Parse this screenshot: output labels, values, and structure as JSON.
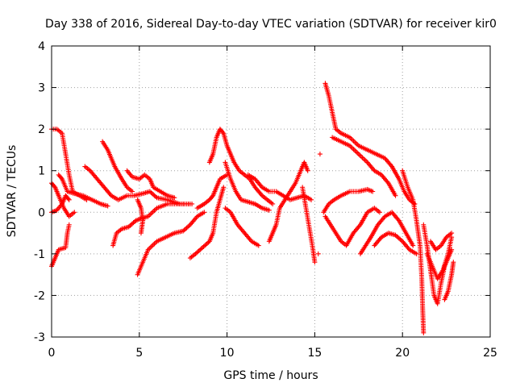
{
  "chart_data": {
    "type": "scatter",
    "title": "Day 338 of 2016, Sidereal Day-to-day VTEC variation (SDTVAR) for receiver kir0",
    "xlabel": "GPS time / hours",
    "ylabel": "SDTVAR / TECUs",
    "xlim": [
      0,
      25
    ],
    "ylim": [
      -3,
      4
    ],
    "x_ticks": [
      0,
      5,
      10,
      15,
      20,
      25
    ],
    "y_ticks": [
      -3,
      -2,
      -1,
      0,
      1,
      2,
      3,
      4
    ],
    "grid": true,
    "marker": "+",
    "color": "#ff0000",
    "series": [
      {
        "name": "trace-01",
        "points": [
          [
            0.0,
            2.0
          ],
          [
            0.3,
            2.0
          ],
          [
            0.6,
            1.9
          ],
          [
            0.8,
            1.4
          ],
          [
            1.0,
            0.9
          ],
          [
            1.2,
            0.5
          ],
          [
            1.6,
            0.4
          ],
          [
            2.0,
            0.3
          ]
        ]
      },
      {
        "name": "trace-02",
        "points": [
          [
            0.0,
            0.7
          ],
          [
            0.2,
            0.6
          ],
          [
            0.4,
            0.4
          ],
          [
            0.7,
            0.1
          ],
          [
            1.0,
            -0.1
          ],
          [
            1.3,
            0.0
          ]
        ]
      },
      {
        "name": "trace-03",
        "points": [
          [
            0.0,
            0.0
          ],
          [
            0.3,
            0.05
          ],
          [
            0.6,
            0.2
          ],
          [
            0.8,
            0.4
          ],
          [
            1.0,
            0.3
          ]
        ]
      },
      {
        "name": "trace-04",
        "points": [
          [
            0.0,
            -1.3
          ],
          [
            0.2,
            -1.1
          ],
          [
            0.4,
            -0.9
          ],
          [
            0.8,
            -0.85
          ],
          [
            0.9,
            -0.5
          ],
          [
            1.0,
            -0.3
          ]
        ]
      },
      {
        "name": "trace-05",
        "points": [
          [
            0.4,
            0.9
          ],
          [
            0.6,
            0.8
          ],
          [
            0.9,
            0.5
          ],
          [
            1.3,
            0.45
          ],
          [
            1.8,
            0.4
          ],
          [
            2.3,
            0.3
          ],
          [
            2.8,
            0.2
          ],
          [
            3.2,
            0.15
          ]
        ]
      },
      {
        "name": "trace-06",
        "points": [
          [
            1.9,
            1.1
          ],
          [
            2.2,
            1.0
          ],
          [
            2.6,
            0.8
          ],
          [
            3.0,
            0.6
          ],
          [
            3.4,
            0.4
          ],
          [
            3.8,
            0.3
          ],
          [
            4.3,
            0.4
          ],
          [
            4.7,
            0.4
          ],
          [
            5.2,
            0.45
          ],
          [
            5.6,
            0.5
          ],
          [
            6.0,
            0.35
          ],
          [
            6.6,
            0.3
          ],
          [
            7.3,
            0.2
          ],
          [
            8.0,
            0.2
          ]
        ]
      },
      {
        "name": "trace-07",
        "points": [
          [
            2.9,
            1.7
          ],
          [
            3.2,
            1.5
          ],
          [
            3.6,
            1.1
          ],
          [
            4.0,
            0.8
          ],
          [
            4.3,
            0.6
          ],
          [
            4.6,
            0.5
          ]
        ]
      },
      {
        "name": "trace-08",
        "points": [
          [
            3.5,
            -0.8
          ],
          [
            3.7,
            -0.5
          ],
          [
            4.0,
            -0.4
          ],
          [
            4.4,
            -0.35
          ],
          [
            4.8,
            -0.2
          ],
          [
            5.1,
            -0.15
          ],
          [
            5.5,
            -0.1
          ],
          [
            6.0,
            0.1
          ],
          [
            6.6,
            0.2
          ],
          [
            7.2,
            0.2
          ],
          [
            7.8,
            0.2
          ]
        ]
      },
      {
        "name": "trace-09",
        "points": [
          [
            4.3,
            1.0
          ],
          [
            4.6,
            0.85
          ],
          [
            5.0,
            0.8
          ],
          [
            5.3,
            0.9
          ],
          [
            5.6,
            0.8
          ],
          [
            5.8,
            0.6
          ],
          [
            6.2,
            0.5
          ],
          [
            6.6,
            0.4
          ],
          [
            7.0,
            0.35
          ]
        ]
      },
      {
        "name": "trace-10",
        "points": [
          [
            4.9,
            0.3
          ],
          [
            5.1,
            0.1
          ],
          [
            5.2,
            -0.2
          ],
          [
            5.1,
            -0.5
          ]
        ]
      },
      {
        "name": "trace-11",
        "points": [
          [
            4.9,
            -1.5
          ],
          [
            5.2,
            -1.2
          ],
          [
            5.5,
            -0.9
          ],
          [
            6.0,
            -0.7
          ],
          [
            6.5,
            -0.6
          ],
          [
            7.0,
            -0.5
          ],
          [
            7.5,
            -0.45
          ],
          [
            7.9,
            -0.3
          ],
          [
            8.3,
            -0.1
          ],
          [
            8.7,
            0.0
          ]
        ]
      },
      {
        "name": "trace-12",
        "points": [
          [
            7.9,
            -1.1
          ],
          [
            8.2,
            -1.0
          ],
          [
            8.6,
            -0.85
          ],
          [
            9.0,
            -0.7
          ],
          [
            9.2,
            -0.5
          ],
          [
            9.4,
            0.0
          ],
          [
            9.6,
            0.3
          ],
          [
            9.8,
            0.6
          ]
        ]
      },
      {
        "name": "trace-13",
        "points": [
          [
            8.3,
            0.1
          ],
          [
            8.7,
            0.2
          ],
          [
            9.0,
            0.3
          ],
          [
            9.2,
            0.4
          ],
          [
            9.4,
            0.6
          ],
          [
            9.6,
            0.8
          ],
          [
            10.0,
            0.9
          ]
        ]
      },
      {
        "name": "trace-14",
        "points": [
          [
            9.0,
            1.2
          ],
          [
            9.2,
            1.4
          ],
          [
            9.4,
            1.8
          ],
          [
            9.6,
            2.0
          ],
          [
            9.8,
            1.9
          ],
          [
            10.0,
            1.6
          ],
          [
            10.2,
            1.4
          ],
          [
            10.4,
            1.2
          ],
          [
            10.7,
            1.0
          ],
          [
            11.0,
            0.9
          ],
          [
            11.3,
            0.8
          ],
          [
            11.6,
            0.6
          ],
          [
            12.0,
            0.4
          ],
          [
            12.3,
            0.3
          ],
          [
            12.6,
            0.2
          ]
        ]
      },
      {
        "name": "trace-15",
        "points": [
          [
            9.9,
            1.2
          ],
          [
            10.2,
            0.8
          ],
          [
            10.5,
            0.5
          ],
          [
            10.8,
            0.3
          ],
          [
            11.2,
            0.25
          ],
          [
            11.6,
            0.2
          ],
          [
            12.0,
            0.1
          ],
          [
            12.4,
            0.05
          ]
        ]
      },
      {
        "name": "trace-16",
        "points": [
          [
            9.9,
            0.1
          ],
          [
            10.2,
            0.0
          ],
          [
            10.6,
            -0.3
          ],
          [
            11.0,
            -0.5
          ],
          [
            11.4,
            -0.7
          ],
          [
            11.8,
            -0.8
          ]
        ]
      },
      {
        "name": "trace-17",
        "points": [
          [
            11.2,
            0.9
          ],
          [
            11.6,
            0.8
          ],
          [
            12.0,
            0.6
          ],
          [
            12.4,
            0.5
          ],
          [
            12.8,
            0.5
          ],
          [
            13.2,
            0.4
          ],
          [
            13.6,
            0.3
          ],
          [
            14.0,
            0.35
          ],
          [
            14.4,
            0.4
          ],
          [
            14.8,
            0.3
          ]
        ]
      },
      {
        "name": "trace-18",
        "points": [
          [
            12.4,
            -0.7
          ],
          [
            12.6,
            -0.5
          ],
          [
            12.8,
            -0.3
          ],
          [
            13.0,
            0.1
          ],
          [
            13.3,
            0.3
          ],
          [
            13.6,
            0.5
          ],
          [
            13.9,
            0.7
          ],
          [
            14.2,
            1.0
          ],
          [
            14.4,
            1.2
          ],
          [
            14.6,
            1.0
          ]
        ]
      },
      {
        "name": "trace-19",
        "points": [
          [
            14.3,
            0.6
          ],
          [
            14.5,
            0.1
          ],
          [
            14.7,
            -0.4
          ],
          [
            14.9,
            -0.9
          ],
          [
            15.0,
            -1.2
          ]
        ]
      },
      {
        "name": "trace-20",
        "points": [
          [
            15.3,
            1.4
          ]
        ]
      },
      {
        "name": "trace-21",
        "points": [
          [
            15.2,
            -1.0
          ]
        ]
      },
      {
        "name": "trace-22",
        "points": [
          [
            15.6,
            3.1
          ],
          [
            15.8,
            2.8
          ],
          [
            16.0,
            2.4
          ],
          [
            16.2,
            2.0
          ],
          [
            16.5,
            1.9
          ],
          [
            17.0,
            1.8
          ],
          [
            17.5,
            1.6
          ],
          [
            18.0,
            1.5
          ],
          [
            18.5,
            1.4
          ],
          [
            19.0,
            1.3
          ],
          [
            19.4,
            1.1
          ],
          [
            19.8,
            0.8
          ],
          [
            20.1,
            0.5
          ],
          [
            20.4,
            0.3
          ],
          [
            20.7,
            0.2
          ]
        ]
      },
      {
        "name": "trace-23",
        "points": [
          [
            16.0,
            1.8
          ],
          [
            16.5,
            1.7
          ],
          [
            17.0,
            1.6
          ],
          [
            17.5,
            1.4
          ],
          [
            18.0,
            1.2
          ],
          [
            18.4,
            1.0
          ],
          [
            18.8,
            0.9
          ],
          [
            19.2,
            0.7
          ],
          [
            19.6,
            0.4
          ]
        ]
      },
      {
        "name": "trace-24",
        "points": [
          [
            15.5,
            0.0
          ],
          [
            15.8,
            0.2
          ],
          [
            16.1,
            0.3
          ],
          [
            16.5,
            0.4
          ],
          [
            17.0,
            0.5
          ],
          [
            17.5,
            0.5
          ],
          [
            18.0,
            0.55
          ],
          [
            18.3,
            0.5
          ]
        ]
      },
      {
        "name": "trace-25",
        "points": [
          [
            15.6,
            -0.1
          ],
          [
            15.9,
            -0.3
          ],
          [
            16.2,
            -0.5
          ],
          [
            16.5,
            -0.7
          ],
          [
            16.8,
            -0.8
          ],
          [
            17.2,
            -0.5
          ],
          [
            17.6,
            -0.3
          ],
          [
            18.0,
            0.0
          ],
          [
            18.4,
            0.1
          ],
          [
            18.7,
            0.0
          ]
        ]
      },
      {
        "name": "trace-26",
        "points": [
          [
            17.6,
            -1.0
          ],
          [
            17.9,
            -0.8
          ],
          [
            18.2,
            -0.6
          ],
          [
            18.6,
            -0.3
          ],
          [
            19.0,
            -0.1
          ],
          [
            19.4,
            0.0
          ],
          [
            19.8,
            -0.2
          ],
          [
            20.2,
            -0.5
          ],
          [
            20.6,
            -0.8
          ]
        ]
      },
      {
        "name": "trace-27",
        "points": [
          [
            18.4,
            -0.8
          ],
          [
            18.8,
            -0.6
          ],
          [
            19.2,
            -0.5
          ],
          [
            19.6,
            -0.55
          ],
          [
            20.0,
            -0.7
          ],
          [
            20.4,
            -0.9
          ],
          [
            20.8,
            -1.0
          ]
        ]
      },
      {
        "name": "trace-28",
        "points": [
          [
            20.0,
            1.0
          ],
          [
            20.3,
            0.6
          ],
          [
            20.6,
            0.3
          ],
          [
            20.8,
            -0.2
          ],
          [
            21.0,
            -0.8
          ],
          [
            21.1,
            -1.6
          ],
          [
            21.15,
            -2.3
          ],
          [
            21.2,
            -2.9
          ]
        ]
      },
      {
        "name": "trace-29",
        "points": [
          [
            21.2,
            -0.3
          ],
          [
            21.4,
            -0.8
          ],
          [
            21.6,
            -1.4
          ],
          [
            21.8,
            -2.0
          ],
          [
            22.0,
            -2.2
          ],
          [
            22.2,
            -1.7
          ],
          [
            22.4,
            -1.3
          ],
          [
            22.6,
            -1.1
          ],
          [
            22.8,
            -0.9
          ]
        ]
      },
      {
        "name": "trace-30",
        "points": [
          [
            21.4,
            -1.0
          ],
          [
            21.7,
            -1.3
          ],
          [
            22.0,
            -1.6
          ],
          [
            22.3,
            -1.4
          ],
          [
            22.6,
            -1.0
          ],
          [
            22.8,
            -0.6
          ]
        ]
      },
      {
        "name": "trace-31",
        "points": [
          [
            21.6,
            -0.7
          ],
          [
            21.9,
            -0.9
          ],
          [
            22.2,
            -0.8
          ],
          [
            22.5,
            -0.6
          ],
          [
            22.8,
            -0.5
          ]
        ]
      },
      {
        "name": "trace-32",
        "points": [
          [
            22.4,
            -2.1
          ],
          [
            22.6,
            -1.9
          ],
          [
            22.8,
            -1.5
          ],
          [
            22.9,
            -1.2
          ]
        ]
      }
    ]
  }
}
